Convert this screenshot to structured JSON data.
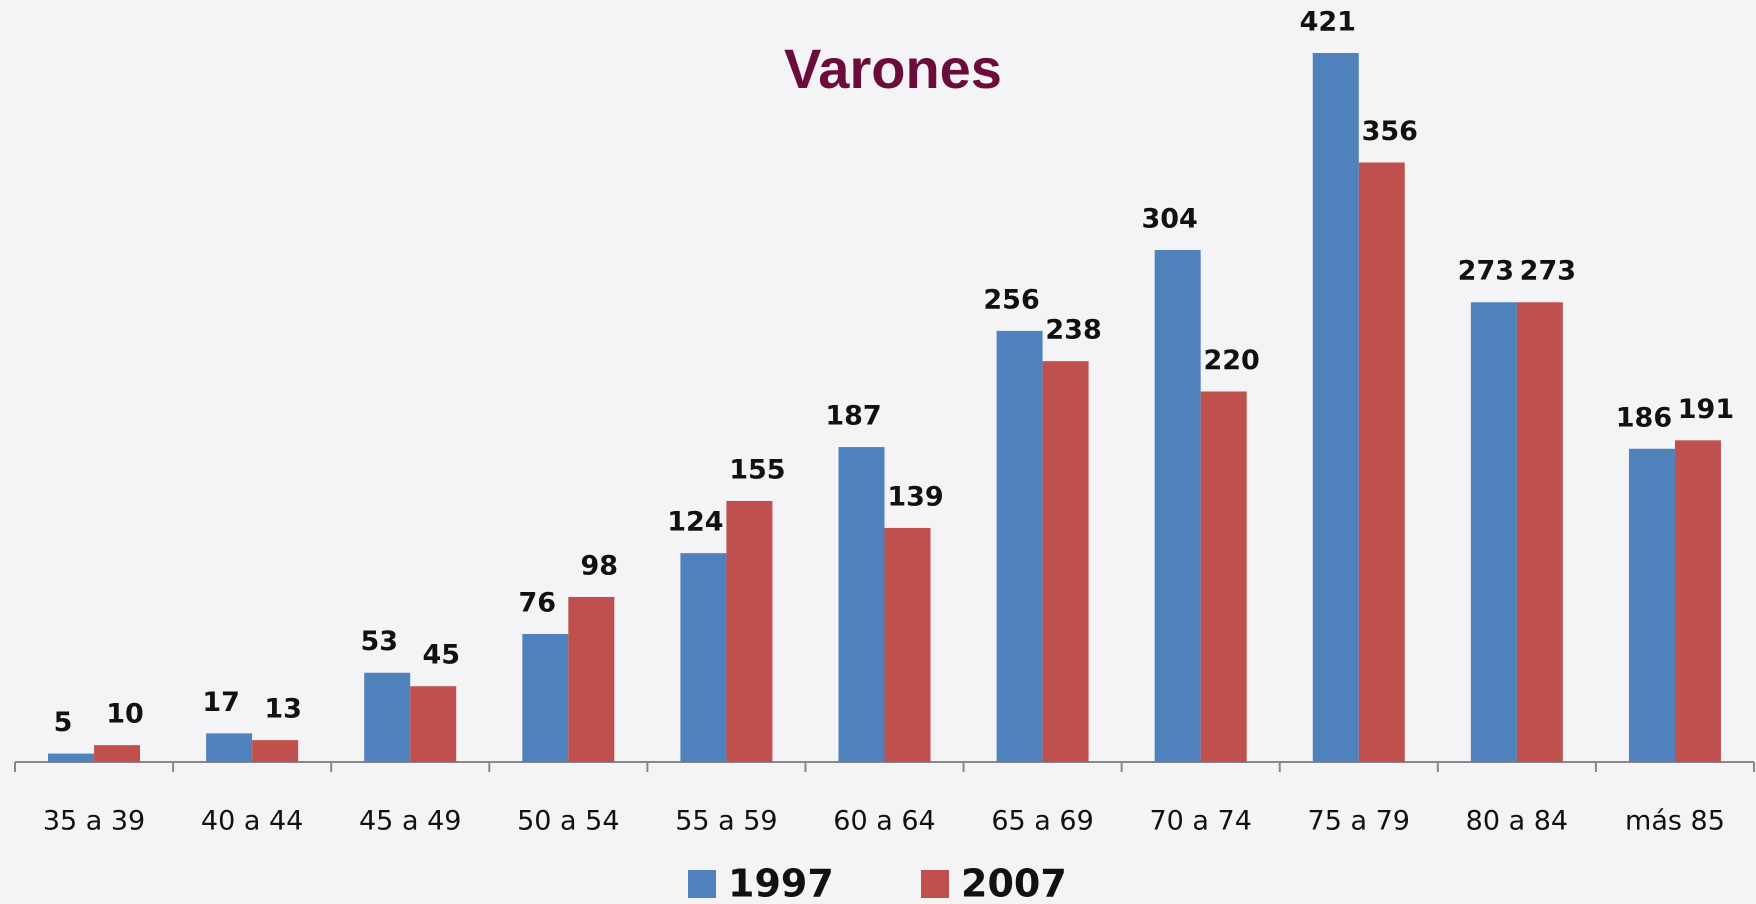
{
  "chart_data": {
    "type": "bar",
    "title": "Varones",
    "categories": [
      "35 a 39",
      "40 a 44",
      "45 a 49",
      "50 a 54",
      "55 a 59",
      "60 a 64",
      "65 a 69",
      "70 a 74",
      "75 a 79",
      "80 a 84",
      "más 85"
    ],
    "series": [
      {
        "name": "1997",
        "color": "#4f81bd",
        "values": [
          5,
          17,
          53,
          76,
          124,
          187,
          256,
          304,
          421,
          273,
          186
        ]
      },
      {
        "name": "2007",
        "color": "#c0504d",
        "values": [
          10,
          13,
          45,
          98,
          155,
          139,
          238,
          220,
          356,
          273,
          191
        ]
      }
    ],
    "legend": "bottom"
  }
}
